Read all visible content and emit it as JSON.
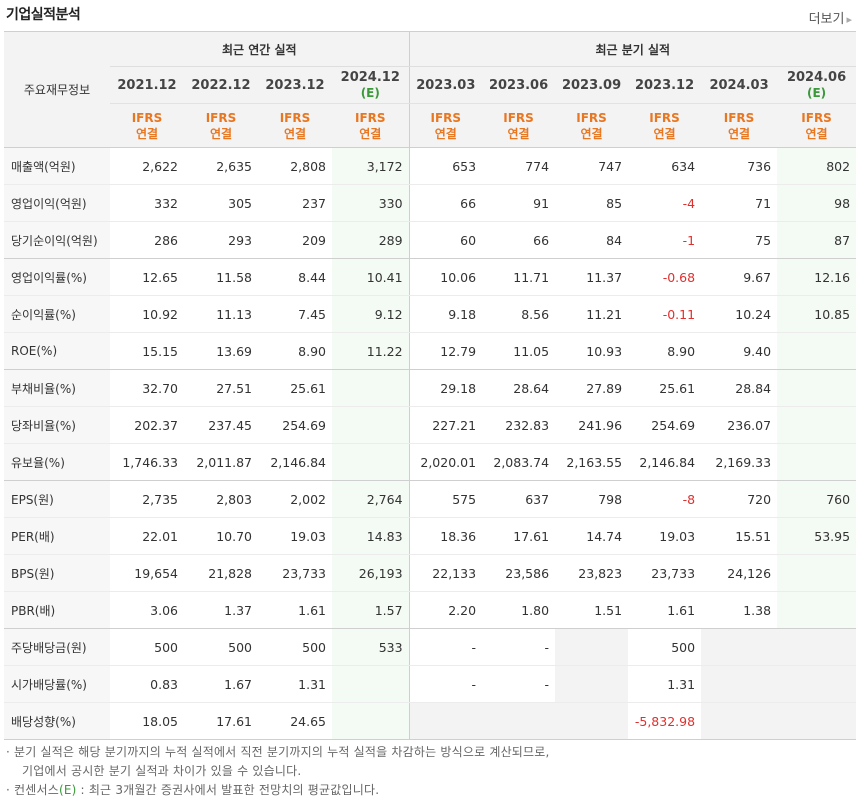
{
  "header": {
    "title": "기업실적분석",
    "more": "더보기"
  },
  "table": {
    "label_header": "주요재무정보",
    "groups": {
      "annual": "최근 연간 실적",
      "quarterly": "최근 분기 실적"
    },
    "periods": [
      "2021.12",
      "2022.12",
      "2023.12",
      "2024.12",
      "2023.03",
      "2023.06",
      "2023.09",
      "2023.12",
      "2024.03",
      "2024.06"
    ],
    "estimate_mark": "(E)",
    "ifrs_line1": "IFRS",
    "ifrs_line2": "연결",
    "rows": [
      [
        "매출액(억원)",
        "2,622",
        "2,635",
        "2,808",
        "3,172",
        "653",
        "774",
        "747",
        "634",
        "736",
        "802"
      ],
      [
        "영업이익(억원)",
        "332",
        "305",
        "237",
        "330",
        "66",
        "91",
        "85",
        "-4",
        "71",
        "98"
      ],
      [
        "당기순이익(억원)",
        "286",
        "293",
        "209",
        "289",
        "60",
        "66",
        "84",
        "-1",
        "75",
        "87"
      ],
      [
        "영업이익률(%)",
        "12.65",
        "11.58",
        "8.44",
        "10.41",
        "10.06",
        "11.71",
        "11.37",
        "-0.68",
        "9.67",
        "12.16"
      ],
      [
        "순이익률(%)",
        "10.92",
        "11.13",
        "7.45",
        "9.12",
        "9.18",
        "8.56",
        "11.21",
        "-0.11",
        "10.24",
        "10.85"
      ],
      [
        "ROE(%)",
        "15.15",
        "13.69",
        "8.90",
        "11.22",
        "12.79",
        "11.05",
        "10.93",
        "8.90",
        "9.40",
        ""
      ],
      [
        "부채비율(%)",
        "32.70",
        "27.51",
        "25.61",
        "",
        "29.18",
        "28.64",
        "27.89",
        "25.61",
        "28.84",
        ""
      ],
      [
        "당좌비율(%)",
        "202.37",
        "237.45",
        "254.69",
        "",
        "227.21",
        "232.83",
        "241.96",
        "254.69",
        "236.07",
        ""
      ],
      [
        "유보율(%)",
        "1,746.33",
        "2,011.87",
        "2,146.84",
        "",
        "2,020.01",
        "2,083.74",
        "2,163.55",
        "2,146.84",
        "2,169.33",
        ""
      ],
      [
        "EPS(원)",
        "2,735",
        "2,803",
        "2,002",
        "2,764",
        "575",
        "637",
        "798",
        "-8",
        "720",
        "760"
      ],
      [
        "PER(배)",
        "22.01",
        "10.70",
        "19.03",
        "14.83",
        "18.36",
        "17.61",
        "14.74",
        "19.03",
        "15.51",
        "53.95"
      ],
      [
        "BPS(원)",
        "19,654",
        "21,828",
        "23,733",
        "26,193",
        "22,133",
        "23,586",
        "23,823",
        "23,733",
        "24,126",
        ""
      ],
      [
        "PBR(배)",
        "3.06",
        "1.37",
        "1.61",
        "1.57",
        "2.20",
        "1.80",
        "1.51",
        "1.61",
        "1.38",
        ""
      ],
      [
        "주당배당금(원)",
        "500",
        "500",
        "500",
        "533",
        "-",
        "-",
        "",
        "500",
        "",
        ""
      ],
      [
        "시가배당률(%)",
        "0.83",
        "1.67",
        "1.31",
        "",
        "-",
        "-",
        "",
        "1.31",
        "",
        ""
      ],
      [
        "배당성향(%)",
        "18.05",
        "17.61",
        "24.65",
        "",
        "",
        "",
        "",
        "-5,832.98",
        "",
        ""
      ]
    ]
  },
  "footnotes": [
    "분기 실적은 해당 분기까지의 누적 실적에서 직전 분기까지의 누적 실적을 차감하는 방식으로 계산되므로,",
    "기업에서 공시한 분기 실적과 차이가 있을 수 있습니다.",
    "컨센서스",
    "(E)",
    " : 최근 3개월간 증권사에서 발표한 전망치의 평균값입니다."
  ],
  "colors": {
    "ifrs": "#e87722",
    "estimate": "#3a9a3a",
    "negative": "#e0302e",
    "header_bg": "#f3f3f3"
  }
}
